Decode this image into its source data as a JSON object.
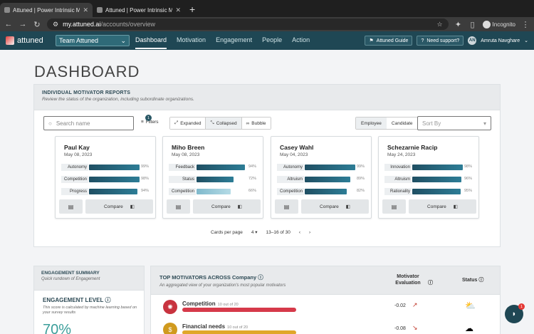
{
  "browser": {
    "tabs": [
      {
        "title": "Attuned | Power Intrinsic Motiva",
        "active": true
      },
      {
        "title": "Attuned | Power Intrinsic Motiva",
        "active": false
      }
    ],
    "url_host": "my.attuned.ai",
    "url_path": "/accounts/overview",
    "incognito_label": "Incognito"
  },
  "header": {
    "logo_text": "attuned",
    "team_select": "Team Attuned",
    "nav": [
      "Dashboard",
      "Motivation",
      "Engagement",
      "People",
      "Action"
    ],
    "guide_label": "Attuned Guide",
    "support_label": "Need support?",
    "user_initials": "AN",
    "user_name": "Amruta Navghare"
  },
  "page_title": "DASHBOARD",
  "reports": {
    "title": "INDIVIDUAL MOTIVATOR REPORTS",
    "subtitle": "Review the status of the organization, including subordinate organizations.",
    "search_placeholder": "Search name",
    "filters_label": "Filters",
    "filters_count": "1",
    "view_expanded": "Expanded",
    "view_collapsed": "Collapsed",
    "view_bubble": "Bubble",
    "type_employee": "Employee",
    "type_candidate": "Candidate",
    "sort_placeholder": "Sort By",
    "compare_label": "Compare",
    "cards": [
      {
        "name": "Paul Kay",
        "date": "May 08, 2023",
        "motivators": [
          {
            "label": "Autonomy",
            "pct": "99%",
            "value": 99
          },
          {
            "label": "Competition",
            "pct": "98%",
            "value": 98
          },
          {
            "label": "Progress",
            "pct": "94%",
            "value": 94
          }
        ]
      },
      {
        "name": "Miho Breen",
        "date": "May 08, 2023",
        "motivators": [
          {
            "label": "Feedback",
            "pct": "94%",
            "value": 94
          },
          {
            "label": "Status",
            "pct": "72%",
            "value": 72
          },
          {
            "label": "Competition",
            "pct": "66%",
            "value": 66
          }
        ]
      },
      {
        "name": "Casey Wahl",
        "date": "May 04, 2023",
        "motivators": [
          {
            "label": "Autonomy",
            "pct": "99%",
            "value": 99
          },
          {
            "label": "Altruism",
            "pct": "89%",
            "value": 89
          },
          {
            "label": "Competition",
            "pct": "82%",
            "value": 82
          }
        ]
      },
      {
        "name": "Schezarnie Racip",
        "date": "May 24, 2023",
        "motivators": [
          {
            "label": "Innovation",
            "pct": "98%",
            "value": 98
          },
          {
            "label": "Altruism",
            "pct": "96%",
            "value": 96
          },
          {
            "label": "Rationality",
            "pct": "95%",
            "value": 95
          }
        ]
      }
    ],
    "pager": {
      "cards_per_page_label": "Cards per page",
      "cards_per_page": "4",
      "range": "13–16 of 30"
    }
  },
  "engagement": {
    "title": "ENGAGEMENT SUMMARY",
    "subtitle": "Quick rundown of Engagement",
    "level_label": "ENGAGEMENT LEVEL",
    "level_desc": "This score is calculated by machine learning based on your survey results",
    "level_value": "70%"
  },
  "top_motivators": {
    "title": "TOP MOTIVATORS ACROSS Company",
    "subtitle": "An aggregated view of your organization's most popular motivators",
    "eval_header": "Motivator Evaluation",
    "status_header": "Status",
    "rows": [
      {
        "name": "Competition",
        "count": "10 out of 20",
        "value": "-0.02",
        "color": "#d63a4a",
        "icon_color": "#c8333f",
        "trend": "↗",
        "trend_color": "#c0392b",
        "status": "sun-cloud-icon"
      },
      {
        "name": "Financial needs",
        "count": "10 out of 20",
        "value": "-0.08",
        "color": "#e0a72a",
        "icon_color": "#d09a1e",
        "trend": "↘",
        "trend_color": "#c0392b",
        "status": "cloud-icon"
      }
    ]
  },
  "chat": {
    "count": "1"
  }
}
